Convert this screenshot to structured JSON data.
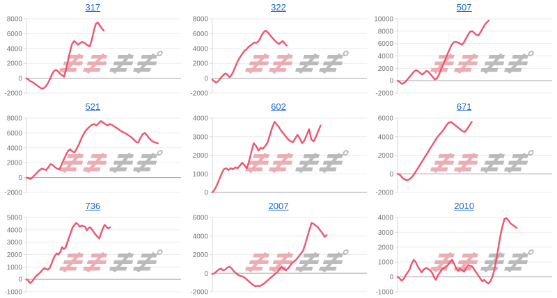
{
  "style": {
    "line_color": "#f0536f",
    "link_color": "#1a66d0",
    "tick_label_color": "#757575",
    "grid_color": "#ebebeb",
    "zero_line_color": "#a3a3a3",
    "axis_line_color": "#d9d9d9",
    "background": "#ffffff"
  },
  "watermark": {
    "text_pink": "みん",
    "text_gray": "レポ",
    "pink_color": "#e79ba3",
    "gray_color": "#ababab"
  },
  "chart_data": [
    {
      "type": "line",
      "title": "317",
      "ylim": [
        -2000,
        8000
      ],
      "yticks": [
        8000,
        6000,
        4000,
        2000,
        0,
        -2000
      ],
      "end_frac": 0.5,
      "values": [
        0,
        -200,
        -400,
        -500,
        -700,
        -900,
        -1100,
        -1300,
        -1400,
        -1300,
        -1000,
        -600,
        0,
        600,
        1000,
        1100,
        900,
        600,
        400,
        200,
        1200,
        2400,
        3600,
        4600,
        5000,
        4800,
        4500,
        4700,
        4900,
        4800,
        4600,
        4400,
        4300,
        5200,
        6400,
        7300,
        7500,
        7100,
        6700,
        6400
      ]
    },
    {
      "type": "line",
      "title": "322",
      "ylim": [
        -2000,
        8000
      ],
      "yticks": [
        8000,
        6000,
        4000,
        2000,
        0,
        -2000
      ],
      "end_frac": 0.48,
      "values": [
        -200,
        -400,
        -600,
        -450,
        -100,
        200,
        500,
        650,
        450,
        150,
        400,
        900,
        1500,
        2100,
        2600,
        3000,
        3400,
        3700,
        3900,
        4200,
        4400,
        4600,
        4800,
        4750,
        4900,
        5300,
        5800,
        6200,
        6400,
        6200,
        5900,
        5600,
        5300,
        5000,
        4800,
        4600,
        4800,
        5000,
        4700,
        4400
      ]
    },
    {
      "type": "line",
      "title": "507",
      "ylim": [
        -2000,
        10000
      ],
      "yticks": [
        10000,
        8000,
        6000,
        4000,
        2000,
        0,
        -2000
      ],
      "end_frac": 0.59,
      "values": [
        0,
        -200,
        -500,
        -400,
        -100,
        300,
        700,
        1100,
        1500,
        1700,
        1500,
        1200,
        1000,
        1300,
        1600,
        1400,
        1000,
        600,
        200,
        400,
        1000,
        1800,
        2600,
        3400,
        4200,
        5000,
        5700,
        6200,
        6300,
        6200,
        6000,
        5800,
        6200,
        6800,
        7400,
        7900,
        8000,
        7700,
        7400,
        7300,
        7800,
        8400,
        9000,
        9400,
        9700
      ]
    },
    {
      "type": "line",
      "title": "521",
      "ylim": [
        -2000,
        8000
      ],
      "yticks": [
        8000,
        6000,
        4000,
        2000,
        0,
        -2000
      ],
      "end_frac": 0.85,
      "values": [
        0,
        -100,
        -200,
        100,
        400,
        700,
        1000,
        1200,
        1100,
        1000,
        1400,
        1800,
        1700,
        1400,
        1200,
        1100,
        1700,
        2400,
        3000,
        3600,
        3800,
        3500,
        3400,
        3900,
        4500,
        5200,
        5800,
        6300,
        6600,
        6900,
        7100,
        7200,
        7000,
        7300,
        7600,
        7400,
        7200,
        7000,
        7200,
        7100,
        6900,
        6700,
        6500,
        6300,
        6100,
        6000,
        5800,
        5600,
        5400,
        5100,
        4800,
        4700,
        5300,
        5800,
        6000,
        5700,
        5300,
        5000,
        4800,
        4700,
        4600
      ]
    },
    {
      "type": "line",
      "title": "602",
      "ylim": [
        0,
        4000
      ],
      "yticks": [
        4000,
        3000,
        2000,
        1000,
        0
      ],
      "end_frac": 0.7,
      "values": [
        0,
        150,
        400,
        700,
        1000,
        1250,
        1300,
        1200,
        1300,
        1250,
        1350,
        1300,
        1450,
        1600,
        1450,
        1300,
        1700,
        2200,
        2650,
        2500,
        2250,
        2400,
        2350,
        2500,
        2700,
        3100,
        3500,
        3800,
        3650,
        3500,
        3300,
        3150,
        3000,
        2850,
        2750,
        2700,
        2900,
        3100,
        2900,
        2650,
        2800,
        3100,
        3400,
        2850,
        2750,
        3000,
        3300,
        3600
      ]
    },
    {
      "type": "line",
      "title": "671",
      "ylim": [
        -2000,
        6000
      ],
      "yticks": [
        6000,
        4000,
        2000,
        0,
        -2000
      ],
      "end_frac": 0.48,
      "values": [
        0,
        -100,
        -400,
        -600,
        -700,
        -600,
        -400,
        -100,
        300,
        700,
        1100,
        1500,
        1900,
        2300,
        2700,
        3100,
        3500,
        3900,
        4200,
        4500,
        4800,
        5200,
        5500,
        5600,
        5400,
        5200,
        5000,
        4800,
        4600,
        4500,
        4800,
        5200,
        5600
      ]
    },
    {
      "type": "line",
      "title": "736",
      "ylim": [
        -1000,
        5000
      ],
      "yticks": [
        5000,
        4000,
        3000,
        2000,
        1000,
        0,
        -1000
      ],
      "end_frac": 0.54,
      "values": [
        0,
        -100,
        -300,
        -200,
        0,
        200,
        350,
        450,
        600,
        750,
        900,
        850,
        780,
        900,
        1200,
        1600,
        1900,
        2100,
        2000,
        2200,
        2600,
        2450,
        2550,
        3000,
        3400,
        3800,
        4200,
        4400,
        4550,
        4450,
        4250,
        4350,
        4300,
        4250,
        3950,
        4150,
        4200,
        4000,
        3800,
        3600,
        3450,
        3300,
        3700,
        4100,
        4400,
        4250,
        4100,
        4200
      ]
    },
    {
      "type": "line",
      "title": "2007",
      "ylim": [
        -2000,
        6000
      ],
      "yticks": [
        6000,
        4000,
        2000,
        0,
        -2000
      ],
      "end_frac": 0.74,
      "values": [
        -100,
        0,
        200,
        400,
        500,
        300,
        400,
        600,
        700,
        500,
        200,
        0,
        -200,
        -300,
        -350,
        -500,
        -700,
        -900,
        -1100,
        -1300,
        -1400,
        -1350,
        -1400,
        -1250,
        -1100,
        -900,
        -700,
        -500,
        -300,
        -100,
        100,
        400,
        700,
        500,
        300,
        500,
        800,
        1100,
        1300,
        1500,
        1800,
        2100,
        2400,
        3100,
        3900,
        4700,
        5400,
        5300,
        5100,
        4900,
        4600,
        4300,
        3900,
        4100
      ]
    },
    {
      "type": "line",
      "title": "2010",
      "ylim": [
        -1000,
        4000
      ],
      "yticks": [
        4000,
        3000,
        2000,
        1000,
        0,
        -1000
      ],
      "end_frac": 0.77,
      "values": [
        0,
        -100,
        -250,
        -150,
        100,
        300,
        500,
        900,
        1150,
        1000,
        700,
        500,
        300,
        500,
        600,
        550,
        450,
        300,
        0,
        -200,
        100,
        300,
        500,
        600,
        700,
        800,
        1000,
        1150,
        900,
        600,
        400,
        550,
        450,
        350,
        600,
        800,
        750,
        700,
        500,
        300,
        100,
        -100,
        -300,
        -200,
        -350,
        -450,
        -300,
        0,
        500,
        1200,
        2000,
        2800,
        3400,
        3900,
        3950,
        3800,
        3600,
        3500,
        3400,
        3300
      ]
    }
  ]
}
